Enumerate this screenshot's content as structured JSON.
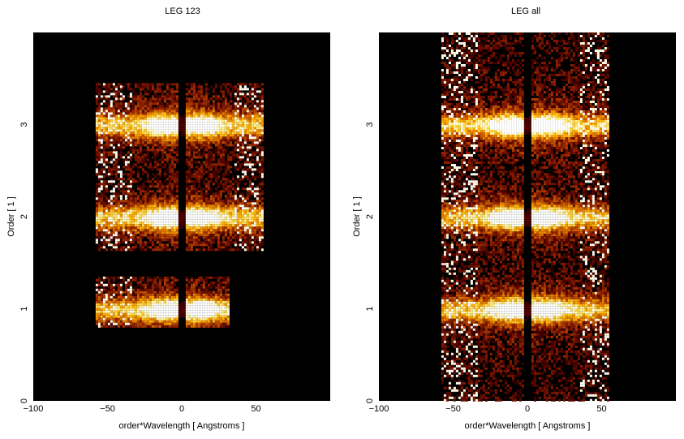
{
  "chart_data": [
    {
      "type": "heatmap",
      "title": "LEG 123",
      "xlabel": "order*Wavelength [ Angstroms ]",
      "ylabel": "Order [ 1 ]",
      "xlim": [
        -100,
        100
      ],
      "ylim": [
        0,
        4
      ],
      "xticks": [
        "−100",
        "−50",
        "0",
        "50"
      ],
      "yticks": [
        "0",
        "1",
        "2",
        "3"
      ],
      "colormap": [
        "#000000",
        "#4a0000",
        "#9a2600",
        "#d96a00",
        "#ffb000",
        "#ffef80",
        "#ffffff"
      ],
      "bands": [
        {
          "order": 1,
          "y": [
            0.8,
            1.35
          ],
          "x": [
            -58,
            32
          ]
        },
        {
          "order": 2,
          "y": [
            1.65,
            2.5
          ],
          "x": [
            -58,
            55
          ]
        },
        {
          "order": 3,
          "y": [
            2.5,
            3.45
          ],
          "x": [
            -58,
            55
          ]
        }
      ],
      "peaks": [
        {
          "order": 1,
          "x": [
            -2,
            2
          ]
        },
        {
          "order": 2,
          "x": [
            -2,
            2
          ]
        },
        {
          "order": 3,
          "x": [
            -2,
            2
          ]
        }
      ]
    },
    {
      "type": "heatmap",
      "title": "LEG all",
      "xlabel": "order*Wavelength [ Angstroms ]",
      "ylabel": "Order [ 1 ]",
      "xlim": [
        -100,
        100
      ],
      "ylim": [
        0,
        4
      ],
      "xticks": [
        "−100",
        "−50",
        "0",
        "50"
      ],
      "yticks": [
        "0",
        "1",
        "2",
        "3"
      ],
      "colormap": [
        "#000000",
        "#4a0000",
        "#9a2600",
        "#d96a00",
        "#ffb000",
        "#ffef80",
        "#ffffff"
      ],
      "bands": [
        {
          "order": 1,
          "y": [
            0.0,
            1.5
          ],
          "x": [
            -58,
            55
          ]
        },
        {
          "order": 2,
          "y": [
            1.5,
            2.5
          ],
          "x": [
            -58,
            55
          ]
        },
        {
          "order": 3,
          "y": [
            2.5,
            4.0
          ],
          "x": [
            -58,
            55
          ]
        }
      ],
      "peaks": [
        {
          "order": 1,
          "x": [
            -2,
            2
          ]
        },
        {
          "order": 2,
          "x": [
            -2,
            2
          ]
        },
        {
          "order": 3,
          "x": [
            -2,
            2
          ]
        }
      ]
    }
  ]
}
